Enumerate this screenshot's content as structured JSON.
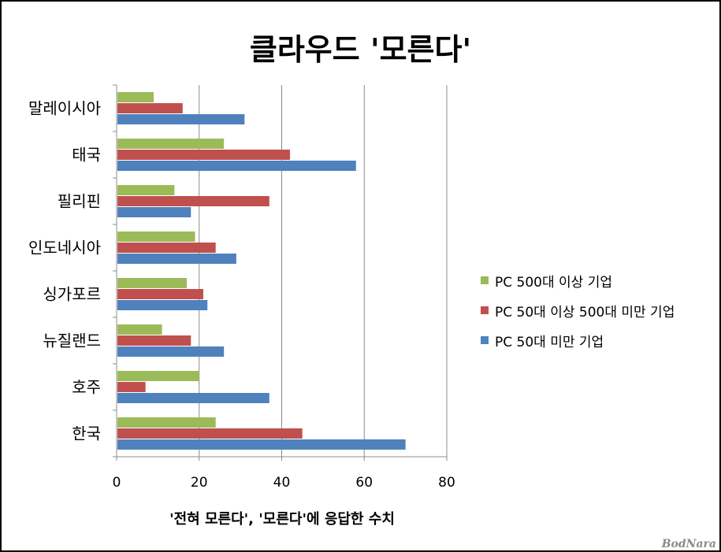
{
  "chart_data": {
    "type": "bar",
    "orientation": "horizontal",
    "title": "클라우드 '모른다'",
    "xlabel": "'전혀 모른다', '모른다'에 응답한 수치",
    "ylabel": "",
    "xlim": [
      0,
      80
    ],
    "xticks": [
      0,
      20,
      40,
      60,
      80
    ],
    "grid": true,
    "legend_position": "right",
    "categories": [
      "말레이시아",
      "태국",
      "필리핀",
      "인도네시아",
      "싱가포르",
      "뉴질랜드",
      "호주",
      "한국"
    ],
    "series": [
      {
        "name": "PC 500대 이상 기업",
        "color": "#9BBB59",
        "values": [
          9,
          26,
          14,
          19,
          17,
          11,
          20,
          24
        ]
      },
      {
        "name": "PC 50대 이상 500대 미만 기업",
        "color": "#C0504D",
        "values": [
          16,
          42,
          37,
          24,
          21,
          18,
          7,
          45
        ]
      },
      {
        "name": "PC 50대 미만 기업",
        "color": "#4F81BD",
        "values": [
          31,
          58,
          18,
          29,
          22,
          26,
          37,
          70
        ]
      }
    ]
  },
  "watermark": "BodNara"
}
